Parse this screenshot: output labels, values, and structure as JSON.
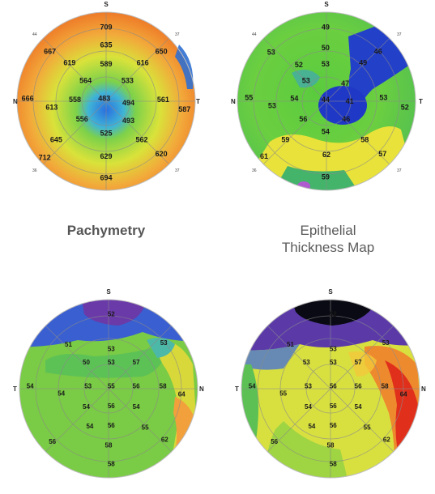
{
  "captions": {
    "pachymetry": "Pachymetry",
    "epithelial_line1": "Epithelial",
    "epithelial_line2": "Thickness Map"
  },
  "maps": [
    {
      "id": "pachymetry-map",
      "markers": {
        "top": "S",
        "left": "N",
        "right": "T",
        "top_left": "44",
        "top_right": "37",
        "bottom_left": "36",
        "bottom_right": "37"
      },
      "values": [
        {
          "v": "709",
          "dx": 0.0,
          "dy": -0.83
        },
        {
          "v": "667",
          "dx": -0.63,
          "dy": -0.56
        },
        {
          "v": "635",
          "dx": 0.0,
          "dy": -0.63
        },
        {
          "v": "650",
          "dx": 0.62,
          "dy": -0.56
        },
        {
          "v": "619",
          "dx": -0.41,
          "dy": -0.43
        },
        {
          "v": "589",
          "dx": 0.0,
          "dy": -0.42
        },
        {
          "v": "616",
          "dx": 0.41,
          "dy": -0.43
        },
        {
          "v": "564",
          "dx": -0.23,
          "dy": -0.23
        },
        {
          "v": "533",
          "dx": 0.24,
          "dy": -0.23
        },
        {
          "v": "666",
          "dx": -0.88,
          "dy": -0.03
        },
        {
          "v": "613",
          "dx": -0.61,
          "dy": 0.07
        },
        {
          "v": "558",
          "dx": -0.35,
          "dy": -0.02
        },
        {
          "v": "483",
          "dx": -0.02,
          "dy": -0.03
        },
        {
          "v": "494",
          "dx": 0.25,
          "dy": 0.02
        },
        {
          "v": "561",
          "dx": 0.64,
          "dy": -0.02
        },
        {
          "v": "587",
          "dx": 0.88,
          "dy": 0.09
        },
        {
          "v": "556",
          "dx": -0.27,
          "dy": 0.2
        },
        {
          "v": "493",
          "dx": 0.25,
          "dy": 0.22
        },
        {
          "v": "525",
          "dx": 0.0,
          "dy": 0.36
        },
        {
          "v": "645",
          "dx": -0.56,
          "dy": 0.43
        },
        {
          "v": "562",
          "dx": 0.4,
          "dy": 0.43
        },
        {
          "v": "712",
          "dx": -0.69,
          "dy": 0.63
        },
        {
          "v": "629",
          "dx": 0.0,
          "dy": 0.62
        },
        {
          "v": "620",
          "dx": 0.62,
          "dy": 0.59
        },
        {
          "v": "694",
          "dx": 0.0,
          "dy": 0.86
        }
      ]
    },
    {
      "id": "epithelial-map",
      "markers": {
        "top": "S",
        "left": "N",
        "right": "T",
        "top_left": "44",
        "top_right": "37",
        "bottom_left": "36",
        "bottom_right": "37"
      },
      "values": [
        {
          "v": "49",
          "dx": -0.01,
          "dy": -0.83
        },
        {
          "v": "50",
          "dx": -0.01,
          "dy": -0.6
        },
        {
          "v": "53",
          "dx": -0.62,
          "dy": -0.55
        },
        {
          "v": "52",
          "dx": -0.31,
          "dy": -0.41
        },
        {
          "v": "53",
          "dx": -0.01,
          "dy": -0.42
        },
        {
          "v": "46",
          "dx": 0.58,
          "dy": -0.56
        },
        {
          "v": "49",
          "dx": 0.41,
          "dy": -0.43
        },
        {
          "v": "53",
          "dx": -0.23,
          "dy": -0.23
        },
        {
          "v": "47",
          "dx": 0.21,
          "dy": -0.2
        },
        {
          "v": "55",
          "dx": -0.87,
          "dy": -0.04
        },
        {
          "v": "53",
          "dx": -0.61,
          "dy": 0.05
        },
        {
          "v": "54",
          "dx": -0.36,
          "dy": -0.03
        },
        {
          "v": "44",
          "dx": -0.01,
          "dy": -0.02
        },
        {
          "v": "41",
          "dx": 0.26,
          "dy": 0.0
        },
        {
          "v": "53",
          "dx": 0.64,
          "dy": -0.04
        },
        {
          "v": "52",
          "dx": 0.88,
          "dy": 0.07
        },
        {
          "v": "56",
          "dx": -0.26,
          "dy": 0.2
        },
        {
          "v": "46",
          "dx": 0.22,
          "dy": 0.2
        },
        {
          "v": "54",
          "dx": -0.01,
          "dy": 0.34
        },
        {
          "v": "59",
          "dx": -0.46,
          "dy": 0.43
        },
        {
          "v": "58",
          "dx": 0.43,
          "dy": 0.43
        },
        {
          "v": "61",
          "dx": -0.7,
          "dy": 0.62
        },
        {
          "v": "62",
          "dx": 0.0,
          "dy": 0.6
        },
        {
          "v": "57",
          "dx": 0.63,
          "dy": 0.59
        },
        {
          "v": "59",
          "dx": -0.01,
          "dy": 0.85
        }
      ]
    },
    {
      "id": "map-bottom-left",
      "markers": {
        "top": "S",
        "left": "T",
        "right": "N",
        "top_left": "",
        "top_right": "",
        "bottom_left": "",
        "bottom_right": ""
      },
      "values": [
        {
          "v": "52",
          "dx": 0.03,
          "dy": -0.84
        },
        {
          "v": "53",
          "dx": 0.62,
          "dy": -0.52
        },
        {
          "v": "51",
          "dx": -0.45,
          "dy": -0.5
        },
        {
          "v": "53",
          "dx": 0.03,
          "dy": -0.45
        },
        {
          "v": "50",
          "dx": -0.25,
          "dy": -0.3
        },
        {
          "v": "53",
          "dx": 0.03,
          "dy": -0.3
        },
        {
          "v": "57",
          "dx": 0.31,
          "dy": -0.3
        },
        {
          "v": "54",
          "dx": -0.88,
          "dy": -0.03
        },
        {
          "v": "54",
          "dx": -0.53,
          "dy": 0.05
        },
        {
          "v": "53",
          "dx": -0.23,
          "dy": -0.03
        },
        {
          "v": "55",
          "dx": 0.03,
          "dy": -0.03
        },
        {
          "v": "56",
          "dx": 0.31,
          "dy": -0.03
        },
        {
          "v": "58",
          "dx": 0.61,
          "dy": -0.03
        },
        {
          "v": "64",
          "dx": 0.82,
          "dy": 0.06
        },
        {
          "v": "54",
          "dx": -0.25,
          "dy": 0.2
        },
        {
          "v": "56",
          "dx": 0.03,
          "dy": 0.19
        },
        {
          "v": "54",
          "dx": 0.31,
          "dy": 0.2
        },
        {
          "v": "54",
          "dx": -0.21,
          "dy": 0.42
        },
        {
          "v": "56",
          "dx": 0.03,
          "dy": 0.41
        },
        {
          "v": "55",
          "dx": 0.41,
          "dy": 0.43
        },
        {
          "v": "56",
          "dx": -0.63,
          "dy": 0.59
        },
        {
          "v": "58",
          "dx": 0.0,
          "dy": 0.63
        },
        {
          "v": "62",
          "dx": 0.63,
          "dy": 0.57
        },
        {
          "v": "58",
          "dx": 0.03,
          "dy": 0.84
        }
      ]
    },
    {
      "id": "map-bottom-right",
      "markers": {
        "top": "S",
        "left": "T",
        "right": "N",
        "top_left": "",
        "top_right": "",
        "bottom_left": "",
        "bottom_right": ""
      },
      "values": [
        {
          "v": "52",
          "dx": 0.03,
          "dy": -0.84
        },
        {
          "v": "53",
          "dx": 0.62,
          "dy": -0.52
        },
        {
          "v": "51",
          "dx": -0.45,
          "dy": -0.5
        },
        {
          "v": "53",
          "dx": 0.03,
          "dy": -0.45
        },
        {
          "v": "53",
          "dx": -0.27,
          "dy": -0.3
        },
        {
          "v": "53",
          "dx": 0.03,
          "dy": -0.3
        },
        {
          "v": "57",
          "dx": 0.31,
          "dy": -0.3
        },
        {
          "v": "54",
          "dx": -0.88,
          "dy": -0.03
        },
        {
          "v": "55",
          "dx": -0.53,
          "dy": 0.05
        },
        {
          "v": "53",
          "dx": -0.25,
          "dy": -0.03
        },
        {
          "v": "56",
          "dx": 0.03,
          "dy": -0.03
        },
        {
          "v": "56",
          "dx": 0.31,
          "dy": -0.03
        },
        {
          "v": "58",
          "dx": 0.61,
          "dy": -0.03
        },
        {
          "v": "64",
          "dx": 0.82,
          "dy": 0.06
        },
        {
          "v": "54",
          "dx": -0.25,
          "dy": 0.2
        },
        {
          "v": "56",
          "dx": 0.03,
          "dy": 0.19
        },
        {
          "v": "54",
          "dx": 0.31,
          "dy": 0.2
        },
        {
          "v": "54",
          "dx": -0.21,
          "dy": 0.42
        },
        {
          "v": "56",
          "dx": 0.03,
          "dy": 0.41
        },
        {
          "v": "55",
          "dx": 0.41,
          "dy": 0.43
        },
        {
          "v": "56",
          "dx": -0.63,
          "dy": 0.59
        },
        {
          "v": "58",
          "dx": 0.0,
          "dy": 0.63
        },
        {
          "v": "62",
          "dx": 0.63,
          "dy": 0.57
        },
        {
          "v": "58",
          "dx": 0.03,
          "dy": 0.84
        }
      ]
    }
  ]
}
